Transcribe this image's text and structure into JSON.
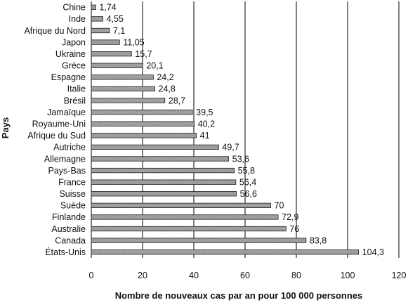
{
  "chart_data": {
    "type": "bar",
    "orientation": "horizontal",
    "title": "",
    "xlabel": "Nombre de nouveaux cas par an pour 100 000 personnes",
    "ylabel": "Pays",
    "xlim": [
      0,
      120
    ],
    "xticks": [
      "0",
      "20",
      "40",
      "60",
      "80",
      "100",
      "120"
    ],
    "grid": "vertical",
    "legend": "none",
    "categories": [
      "Chine",
      "Inde",
      "Afrique du Nord",
      "Japon",
      "Ukraine",
      "Grèce",
      "Espagne",
      "Italie",
      "Brésil",
      "Jamaïque",
      "Royaume-Uni",
      "Afrique du Sud",
      "Autriche",
      "Allemagne",
      "Pays-Bas",
      "France",
      "Suisse",
      "Suède",
      "Finlande",
      "Australie",
      "Canada",
      "États-Unis"
    ],
    "values": [
      1.74,
      4.55,
      7.1,
      11.05,
      15.7,
      20.1,
      24.2,
      24.8,
      28.7,
      39.5,
      40.2,
      41,
      49.7,
      53.6,
      55.8,
      56.4,
      56.6,
      70,
      72.9,
      76,
      83.8,
      104.3
    ],
    "value_labels": [
      "1,74",
      "4,55",
      "7,1",
      "11,05",
      "15,7",
      "20,1",
      "24,2",
      "24,8",
      "28,7",
      "39,5",
      "40,2",
      "41",
      "49,7",
      "53,6",
      "55,8",
      "56,4",
      "56,6",
      "70",
      "72,9",
      "76",
      "83,8",
      "104,3"
    ],
    "colors": {
      "bar_fill": "#a8a8a8",
      "bar_hatch": "#6a6a6a",
      "bar_stroke": "#222222",
      "grid": "#000000",
      "text": "#111111"
    }
  }
}
